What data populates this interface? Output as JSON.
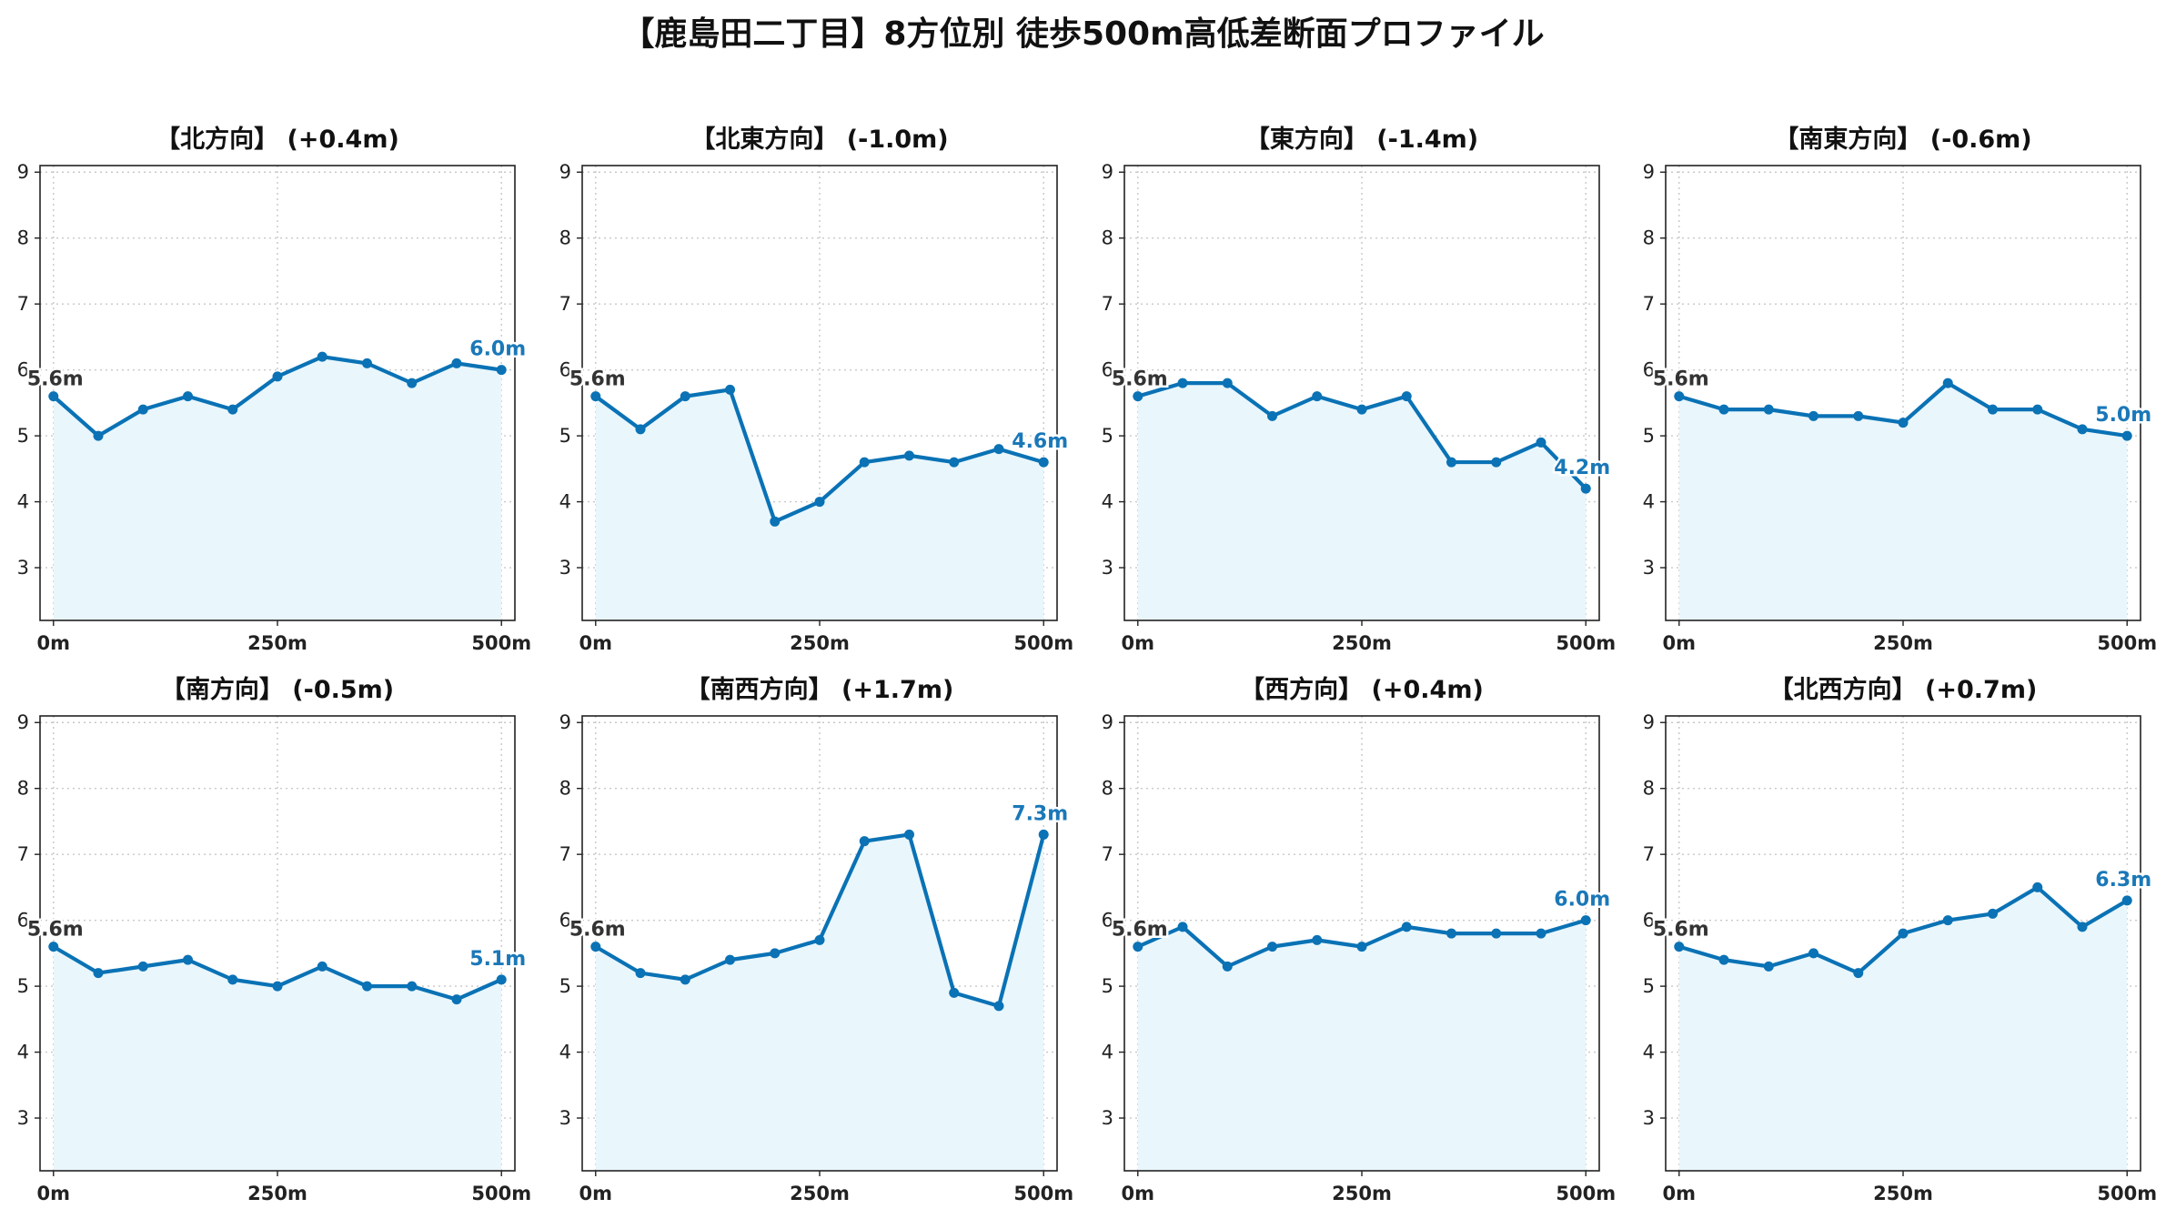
{
  "title": "【鹿島田二丁目】8方位別 徒歩500m高低差断面プロファイル",
  "colors": {
    "line": "#0a72b5",
    "fill": "#e9f6fc",
    "end_label": "#1a78b8",
    "start_label": "#333333",
    "grid": "#c8c8c8"
  },
  "chart_data": [
    {
      "type": "line",
      "title": "【北方向】 (+0.4m)",
      "x": [
        0,
        50,
        100,
        150,
        200,
        250,
        300,
        350,
        400,
        450,
        500
      ],
      "values": [
        5.6,
        5.0,
        5.4,
        5.6,
        5.4,
        5.9,
        6.2,
        6.1,
        5.8,
        6.1,
        6.0
      ],
      "start_label": "5.6m",
      "end_label": "6.0m",
      "xticks": [
        "0m",
        "250m",
        "500m"
      ],
      "yticks": [
        "3",
        "4",
        "5",
        "6",
        "7",
        "8",
        "9"
      ],
      "ylim": [
        2.2,
        9.1
      ],
      "xlim": [
        -15,
        515
      ],
      "grid": true
    },
    {
      "type": "line",
      "title": "【北東方向】 (-1.0m)",
      "x": [
        0,
        50,
        100,
        150,
        200,
        250,
        300,
        350,
        400,
        450,
        500
      ],
      "values": [
        5.6,
        5.1,
        5.6,
        5.7,
        3.7,
        4.0,
        4.6,
        4.7,
        4.6,
        4.8,
        4.6
      ],
      "start_label": "5.6m",
      "end_label": "4.6m",
      "xticks": [
        "0m",
        "250m",
        "500m"
      ],
      "yticks": [
        "3",
        "4",
        "5",
        "6",
        "7",
        "8",
        "9"
      ],
      "ylim": [
        2.2,
        9.1
      ],
      "xlim": [
        -15,
        515
      ],
      "grid": true
    },
    {
      "type": "line",
      "title": "【東方向】 (-1.4m)",
      "x": [
        0,
        50,
        100,
        150,
        200,
        250,
        300,
        350,
        400,
        450,
        500
      ],
      "values": [
        5.6,
        5.8,
        5.8,
        5.3,
        5.6,
        5.4,
        5.6,
        4.6,
        4.6,
        4.9,
        4.2
      ],
      "start_label": "5.6m",
      "end_label": "4.2m",
      "xticks": [
        "0m",
        "250m",
        "500m"
      ],
      "yticks": [
        "3",
        "4",
        "5",
        "6",
        "7",
        "8",
        "9"
      ],
      "ylim": [
        2.2,
        9.1
      ],
      "xlim": [
        -15,
        515
      ],
      "grid": true
    },
    {
      "type": "line",
      "title": "【南東方向】 (-0.6m)",
      "x": [
        0,
        50,
        100,
        150,
        200,
        250,
        300,
        350,
        400,
        450,
        500
      ],
      "values": [
        5.6,
        5.4,
        5.4,
        5.3,
        5.3,
        5.2,
        5.8,
        5.4,
        5.4,
        5.1,
        5.0
      ],
      "start_label": "5.6m",
      "end_label": "5.0m",
      "xticks": [
        "0m",
        "250m",
        "500m"
      ],
      "yticks": [
        "3",
        "4",
        "5",
        "6",
        "7",
        "8",
        "9"
      ],
      "ylim": [
        2.2,
        9.1
      ],
      "xlim": [
        -15,
        515
      ],
      "grid": true
    },
    {
      "type": "line",
      "title": "【南方向】 (-0.5m)",
      "x": [
        0,
        50,
        100,
        150,
        200,
        250,
        300,
        350,
        400,
        450,
        500
      ],
      "values": [
        5.6,
        5.2,
        5.3,
        5.4,
        5.1,
        5.0,
        5.3,
        5.0,
        5.0,
        4.8,
        5.1
      ],
      "start_label": "5.6m",
      "end_label": "5.1m",
      "xticks": [
        "0m",
        "250m",
        "500m"
      ],
      "yticks": [
        "3",
        "4",
        "5",
        "6",
        "7",
        "8",
        "9"
      ],
      "ylim": [
        2.2,
        9.1
      ],
      "xlim": [
        -15,
        515
      ],
      "grid": true
    },
    {
      "type": "line",
      "title": "【南西方向】 (+1.7m)",
      "x": [
        0,
        50,
        100,
        150,
        200,
        250,
        300,
        350,
        400,
        450,
        500
      ],
      "values": [
        5.6,
        5.2,
        5.1,
        5.4,
        5.5,
        5.7,
        7.2,
        7.3,
        4.9,
        4.7,
        7.3
      ],
      "start_label": "5.6m",
      "end_label": "7.3m",
      "xticks": [
        "0m",
        "250m",
        "500m"
      ],
      "yticks": [
        "3",
        "4",
        "5",
        "6",
        "7",
        "8",
        "9"
      ],
      "ylim": [
        2.2,
        9.1
      ],
      "xlim": [
        -15,
        515
      ],
      "grid": true
    },
    {
      "type": "line",
      "title": "【西方向】 (+0.4m)",
      "x": [
        0,
        50,
        100,
        150,
        200,
        250,
        300,
        350,
        400,
        450,
        500
      ],
      "values": [
        5.6,
        5.9,
        5.3,
        5.6,
        5.7,
        5.6,
        5.9,
        5.8,
        5.8,
        5.8,
        6.0
      ],
      "start_label": "5.6m",
      "end_label": "6.0m",
      "xticks": [
        "0m",
        "250m",
        "500m"
      ],
      "yticks": [
        "3",
        "4",
        "5",
        "6",
        "7",
        "8",
        "9"
      ],
      "ylim": [
        2.2,
        9.1
      ],
      "xlim": [
        -15,
        515
      ],
      "grid": true
    },
    {
      "type": "line",
      "title": "【北西方向】 (+0.7m)",
      "x": [
        0,
        50,
        100,
        150,
        200,
        250,
        300,
        350,
        400,
        450,
        500
      ],
      "values": [
        5.6,
        5.4,
        5.3,
        5.5,
        5.2,
        5.8,
        6.0,
        6.1,
        6.5,
        5.9,
        6.3
      ],
      "start_label": "5.6m",
      "end_label": "6.3m",
      "xticks": [
        "0m",
        "250m",
        "500m"
      ],
      "yticks": [
        "3",
        "4",
        "5",
        "6",
        "7",
        "8",
        "9"
      ],
      "ylim": [
        2.2,
        9.1
      ],
      "xlim": [
        -15,
        515
      ],
      "grid": true
    }
  ]
}
